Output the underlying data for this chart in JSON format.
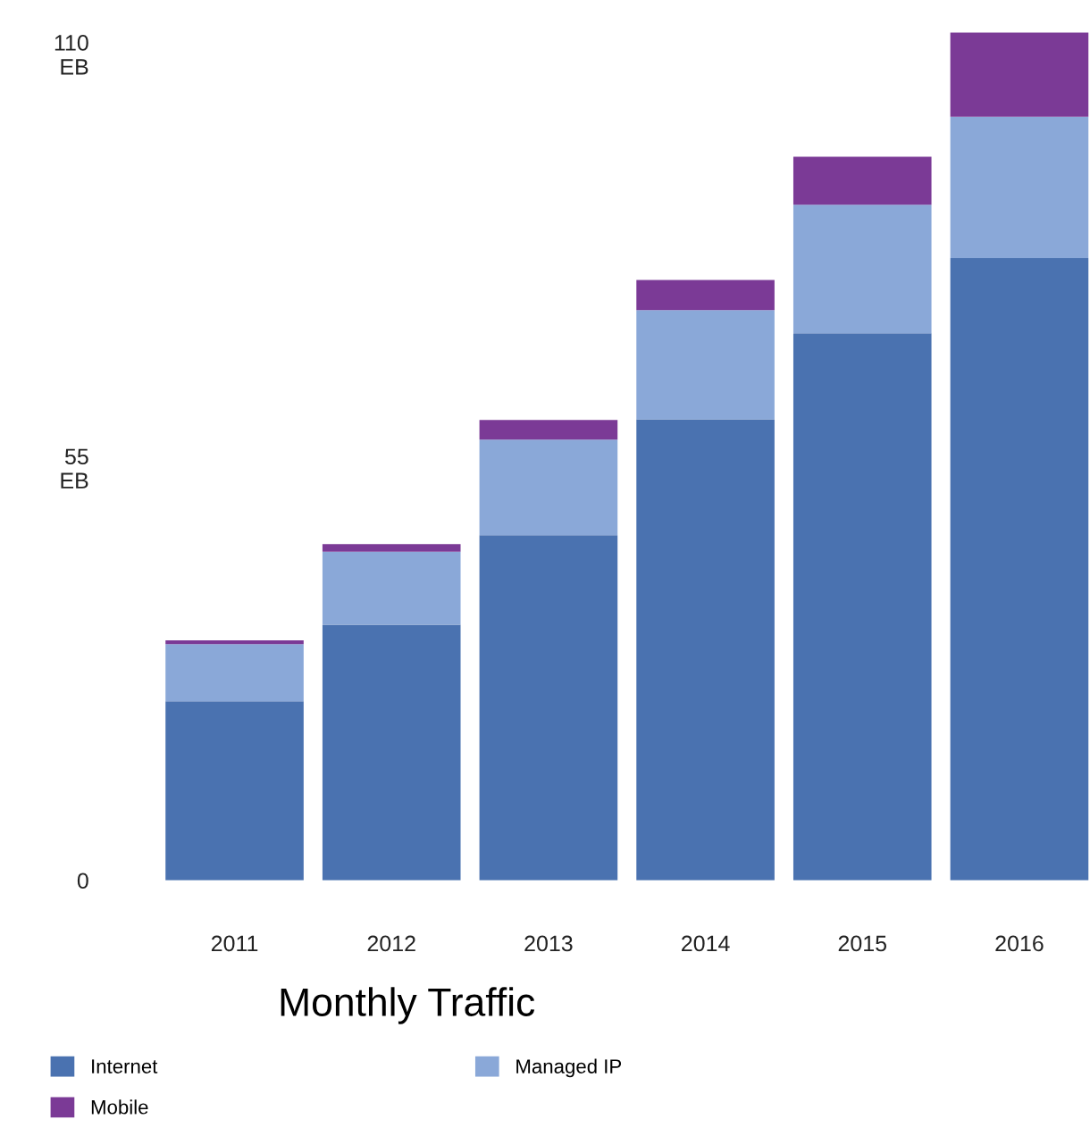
{
  "chart_data": {
    "type": "bar",
    "title": "Monthly Traffic",
    "stacked": true,
    "categories": [
      "2011",
      "2012",
      "2013",
      "2014",
      "2015",
      "2016"
    ],
    "series": [
      {
        "name": "Internet",
        "color": "#4a72b0",
        "values": [
          23.8,
          34.0,
          45.9,
          61.3,
          72.7,
          82.7
        ]
      },
      {
        "name": "Managed IP",
        "color": "#8aa8d8",
        "values": [
          7.6,
          9.7,
          12.7,
          14.5,
          17.1,
          18.8
        ]
      },
      {
        "name": "Mobile",
        "color": "#7b3a96",
        "values": [
          0.5,
          1.0,
          2.6,
          4.0,
          6.4,
          11.2
        ]
      }
    ],
    "ylim": [
      0,
      114
    ],
    "yticks": [
      {
        "value": 0,
        "label": "0"
      },
      {
        "value": 55,
        "label": "55\nEB"
      },
      {
        "value": 110,
        "label": "110\nEB"
      }
    ],
    "grid": false,
    "legend": "bottom"
  }
}
